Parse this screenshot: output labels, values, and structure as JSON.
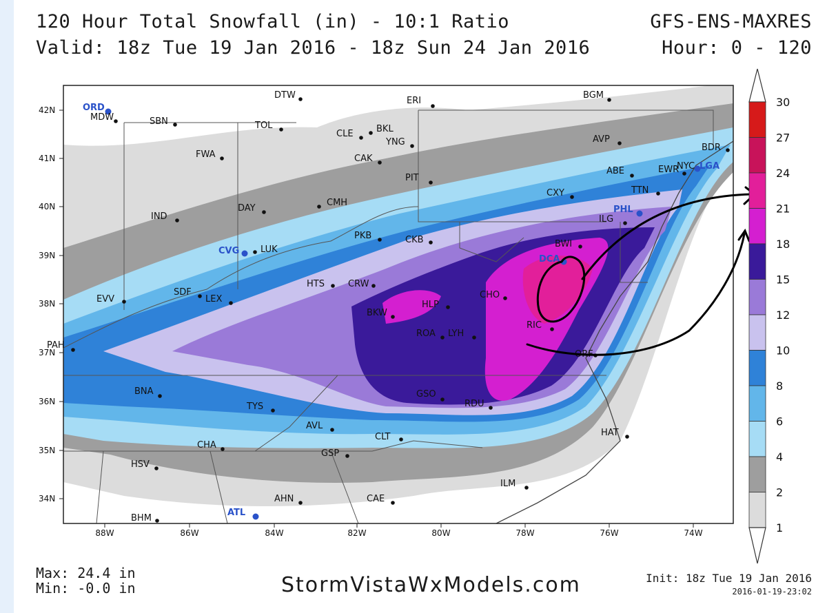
{
  "header": {
    "title": "120 Hour Total Snowfall (in) - 10:1 Ratio",
    "valid": "Valid: 18z Tue 19 Jan 2016 - 18z Sun 24 Jan 2016",
    "model": "GFS-ENS-MAXRES",
    "hours": "Hour: 0 - 120"
  },
  "footer": {
    "max": "Max: 24.4 in",
    "min": "Min: -0.0 in",
    "site": "StormVistaWxModels.com",
    "init": "Init: 18z Tue 19 Jan 2016",
    "timestamp": "2016-01-19-23:02"
  },
  "axes": {
    "lat_labels": [
      "42N",
      "41N",
      "40N",
      "39N",
      "38N",
      "37N",
      "36N",
      "35N",
      "34N"
    ],
    "lon_labels": [
      "88W",
      "86W",
      "84W",
      "82W",
      "80W",
      "78W",
      "76W",
      "74W"
    ]
  },
  "colorbar": {
    "levels": [
      "1",
      "2",
      "4",
      "6",
      "8",
      "10",
      "12",
      "15",
      "18",
      "21",
      "24",
      "27",
      "30"
    ],
    "colors": [
      "#dcdcdc",
      "#9e9e9e",
      "#a6dcf5",
      "#62b6ea",
      "#2f82d8",
      "#c9c2ee",
      "#9a7ad8",
      "#3a1a9a",
      "#d41fd0",
      "#e21f9a",
      "#c8135a",
      "#d61a1a"
    ]
  },
  "cities": [
    {
      "name": "ORD",
      "hl": true
    },
    {
      "name": "MDW"
    },
    {
      "name": "SBN"
    },
    {
      "name": "DTW"
    },
    {
      "name": "TOL"
    },
    {
      "name": "CLE"
    },
    {
      "name": "BKL"
    },
    {
      "name": "YNG"
    },
    {
      "name": "ERI"
    },
    {
      "name": "BGM"
    },
    {
      "name": "FWA"
    },
    {
      "name": "CAK"
    },
    {
      "name": "AVP"
    },
    {
      "name": "BDR"
    },
    {
      "name": "ABE"
    },
    {
      "name": "EWR"
    },
    {
      "name": "NYC"
    },
    {
      "name": "LGA",
      "hl": true
    },
    {
      "name": "PIT"
    },
    {
      "name": "TTN"
    },
    {
      "name": "CXY"
    },
    {
      "name": "DAY"
    },
    {
      "name": "CMH"
    },
    {
      "name": "IND"
    },
    {
      "name": "PHL",
      "hl": true
    },
    {
      "name": "ILG"
    },
    {
      "name": "PKB"
    },
    {
      "name": "CKB"
    },
    {
      "name": "BWI"
    },
    {
      "name": "DCA",
      "hl": true
    },
    {
      "name": "CVG",
      "hl": true
    },
    {
      "name": "LUK"
    },
    {
      "name": "HTS"
    },
    {
      "name": "CRW"
    },
    {
      "name": "SDF"
    },
    {
      "name": "LEX"
    },
    {
      "name": "EVV"
    },
    {
      "name": "HLP"
    },
    {
      "name": "CHO"
    },
    {
      "name": "BKW"
    },
    {
      "name": "RIC"
    },
    {
      "name": "ROA"
    },
    {
      "name": "LYH"
    },
    {
      "name": "PAH"
    },
    {
      "name": "ORF"
    },
    {
      "name": "BNA"
    },
    {
      "name": "GSO"
    },
    {
      "name": "RDU"
    },
    {
      "name": "TYS"
    },
    {
      "name": "AVL"
    },
    {
      "name": "CLT"
    },
    {
      "name": "HAT"
    },
    {
      "name": "CHA"
    },
    {
      "name": "GSP"
    },
    {
      "name": "HSV"
    },
    {
      "name": "ILM"
    },
    {
      "name": "AHN"
    },
    {
      "name": "CAE"
    },
    {
      "name": "ATL",
      "hl": true
    },
    {
      "name": "BHM"
    }
  ]
}
